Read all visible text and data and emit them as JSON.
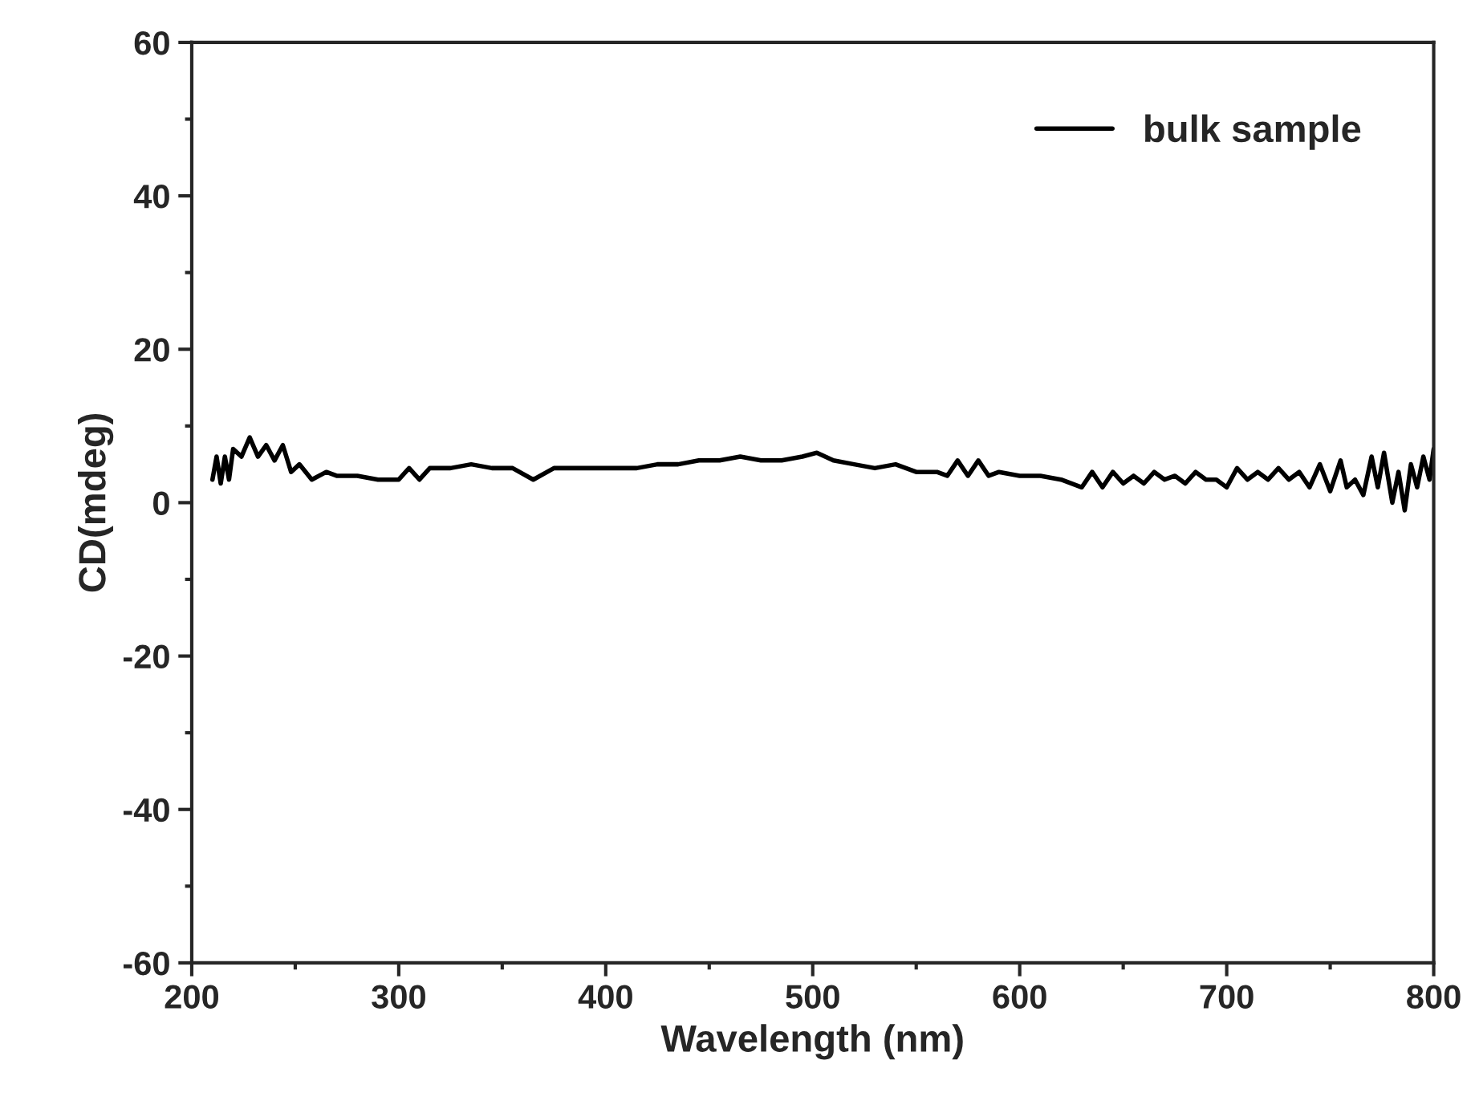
{
  "chart_data": {
    "type": "line",
    "xlabel": "Wavelength (nm)",
    "ylabel": "CD(mdeg)",
    "xlim": [
      200,
      800
    ],
    "xticks": [
      200,
      300,
      400,
      500,
      600,
      700,
      800
    ],
    "ylim": [
      -60,
      60
    ],
    "yticks": [
      -60,
      -40,
      -20,
      0,
      20,
      40,
      60
    ],
    "grid": false,
    "legend": "top right",
    "series": [
      {
        "name": "bulk sample",
        "color": "#000000",
        "x": [
          210,
          212,
          214,
          216,
          218,
          220,
          224,
          228,
          232,
          236,
          240,
          244,
          248,
          252,
          258,
          265,
          270,
          280,
          290,
          300,
          305,
          310,
          315,
          325,
          335,
          345,
          355,
          365,
          375,
          385,
          395,
          405,
          415,
          425,
          435,
          445,
          455,
          465,
          475,
          485,
          495,
          502,
          510,
          520,
          530,
          540,
          550,
          560,
          565,
          570,
          575,
          580,
          585,
          590,
          600,
          610,
          620,
          630,
          635,
          640,
          645,
          650,
          655,
          660,
          665,
          670,
          675,
          680,
          685,
          690,
          695,
          700,
          705,
          710,
          715,
          720,
          725,
          730,
          735,
          740,
          745,
          750,
          755,
          758,
          762,
          766,
          770,
          773,
          776,
          780,
          783,
          786,
          789,
          792,
          795,
          798,
          800
        ],
        "values": [
          3,
          6,
          2.5,
          6,
          3,
          7,
          6,
          8.5,
          6,
          7.5,
          5.5,
          7.5,
          4,
          5,
          3,
          4,
          3.5,
          3.5,
          3,
          3,
          4.5,
          3,
          4.5,
          4.5,
          5,
          4.5,
          4.5,
          3,
          4.5,
          4.5,
          4.5,
          4.5,
          4.5,
          5,
          5,
          5.5,
          5.5,
          6,
          5.5,
          5.5,
          6,
          6.5,
          5.5,
          5,
          4.5,
          5,
          4,
          4,
          3.5,
          5.5,
          3.5,
          5.5,
          3.5,
          4,
          3.5,
          3.5,
          3,
          2,
          4,
          2,
          4,
          2.5,
          3.5,
          2.5,
          4,
          3,
          3.5,
          2.5,
          4,
          3,
          3,
          2,
          4.5,
          3,
          4,
          3,
          4.5,
          3,
          4,
          2,
          5,
          1.5,
          5.5,
          2,
          3,
          1,
          6,
          2,
          6.5,
          0,
          4,
          -1,
          5,
          2,
          6,
          3,
          7
        ]
      }
    ]
  }
}
